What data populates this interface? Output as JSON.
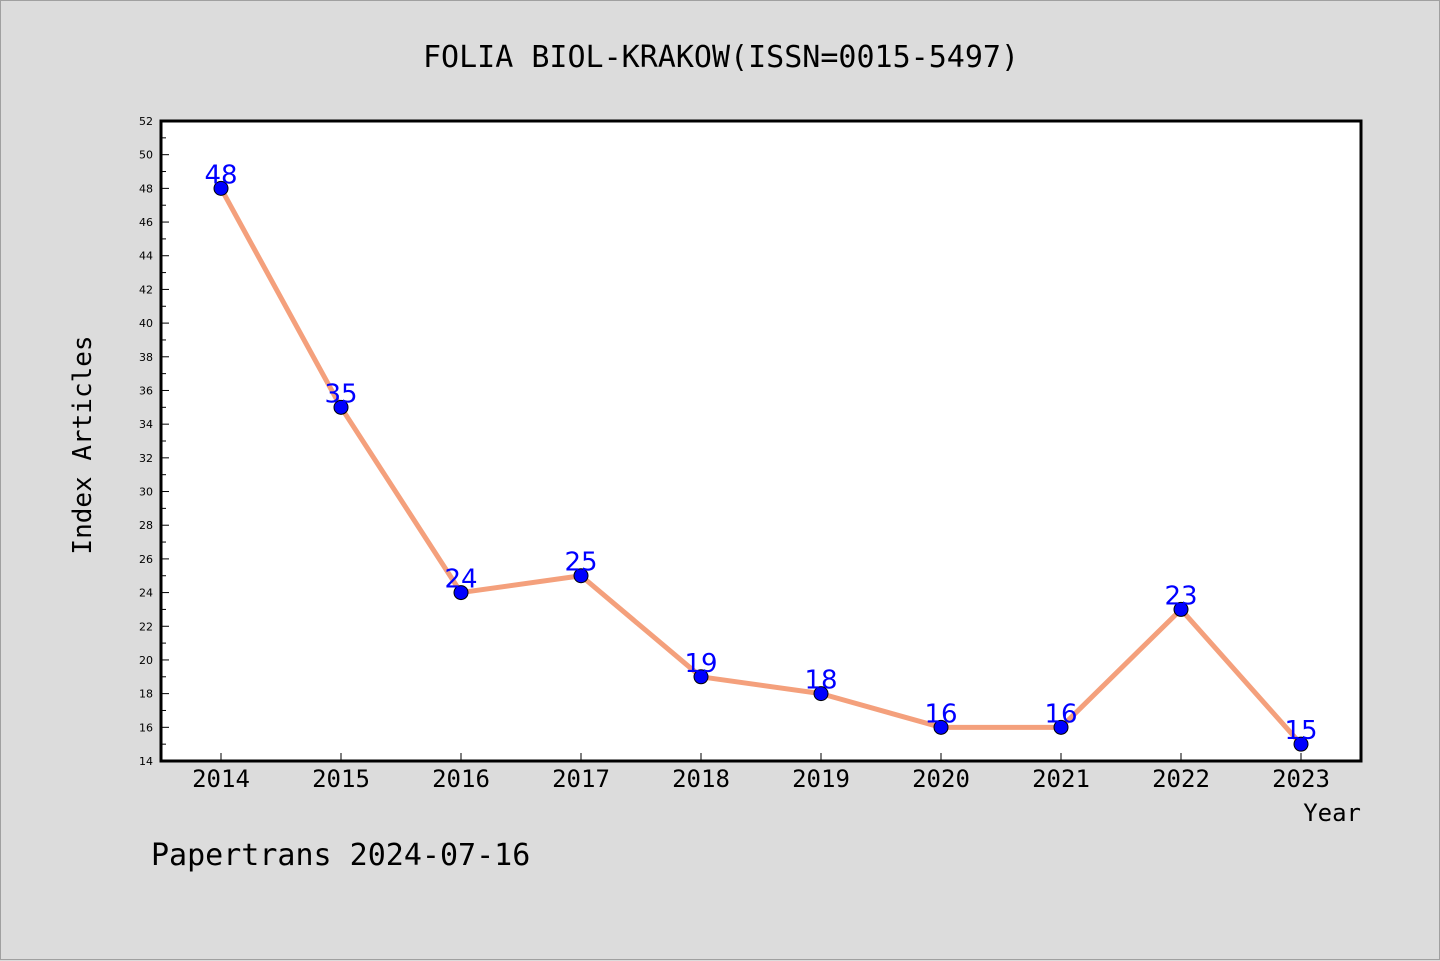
{
  "chart_data": {
    "type": "line",
    "title": "FOLIA BIOL-KRAKOW(ISSN=0015-5497)",
    "xlabel": "Year",
    "ylabel": "Index Articles",
    "categories": [
      "2014",
      "2015",
      "2016",
      "2017",
      "2018",
      "2019",
      "2020",
      "2021",
      "2022",
      "2023"
    ],
    "series": [
      {
        "values": [
          48,
          35,
          24,
          25,
          19,
          18,
          16,
          16,
          23,
          15
        ],
        "line_color": "#f4a07c",
        "marker_color": "#0000ff",
        "label_color": "#0000ff"
      }
    ],
    "ylim": [
      14,
      52
    ],
    "y_ticks": [
      "14",
      "16",
      "18",
      "20",
      "22",
      "24",
      "26",
      "28",
      "30",
      "32",
      "34",
      "36",
      "38",
      "40",
      "42",
      "44",
      "46",
      "48",
      "50",
      "52"
    ],
    "grid": false,
    "data_labels": true
  },
  "footer": {
    "text": "Papertrans 2024-07-16"
  }
}
